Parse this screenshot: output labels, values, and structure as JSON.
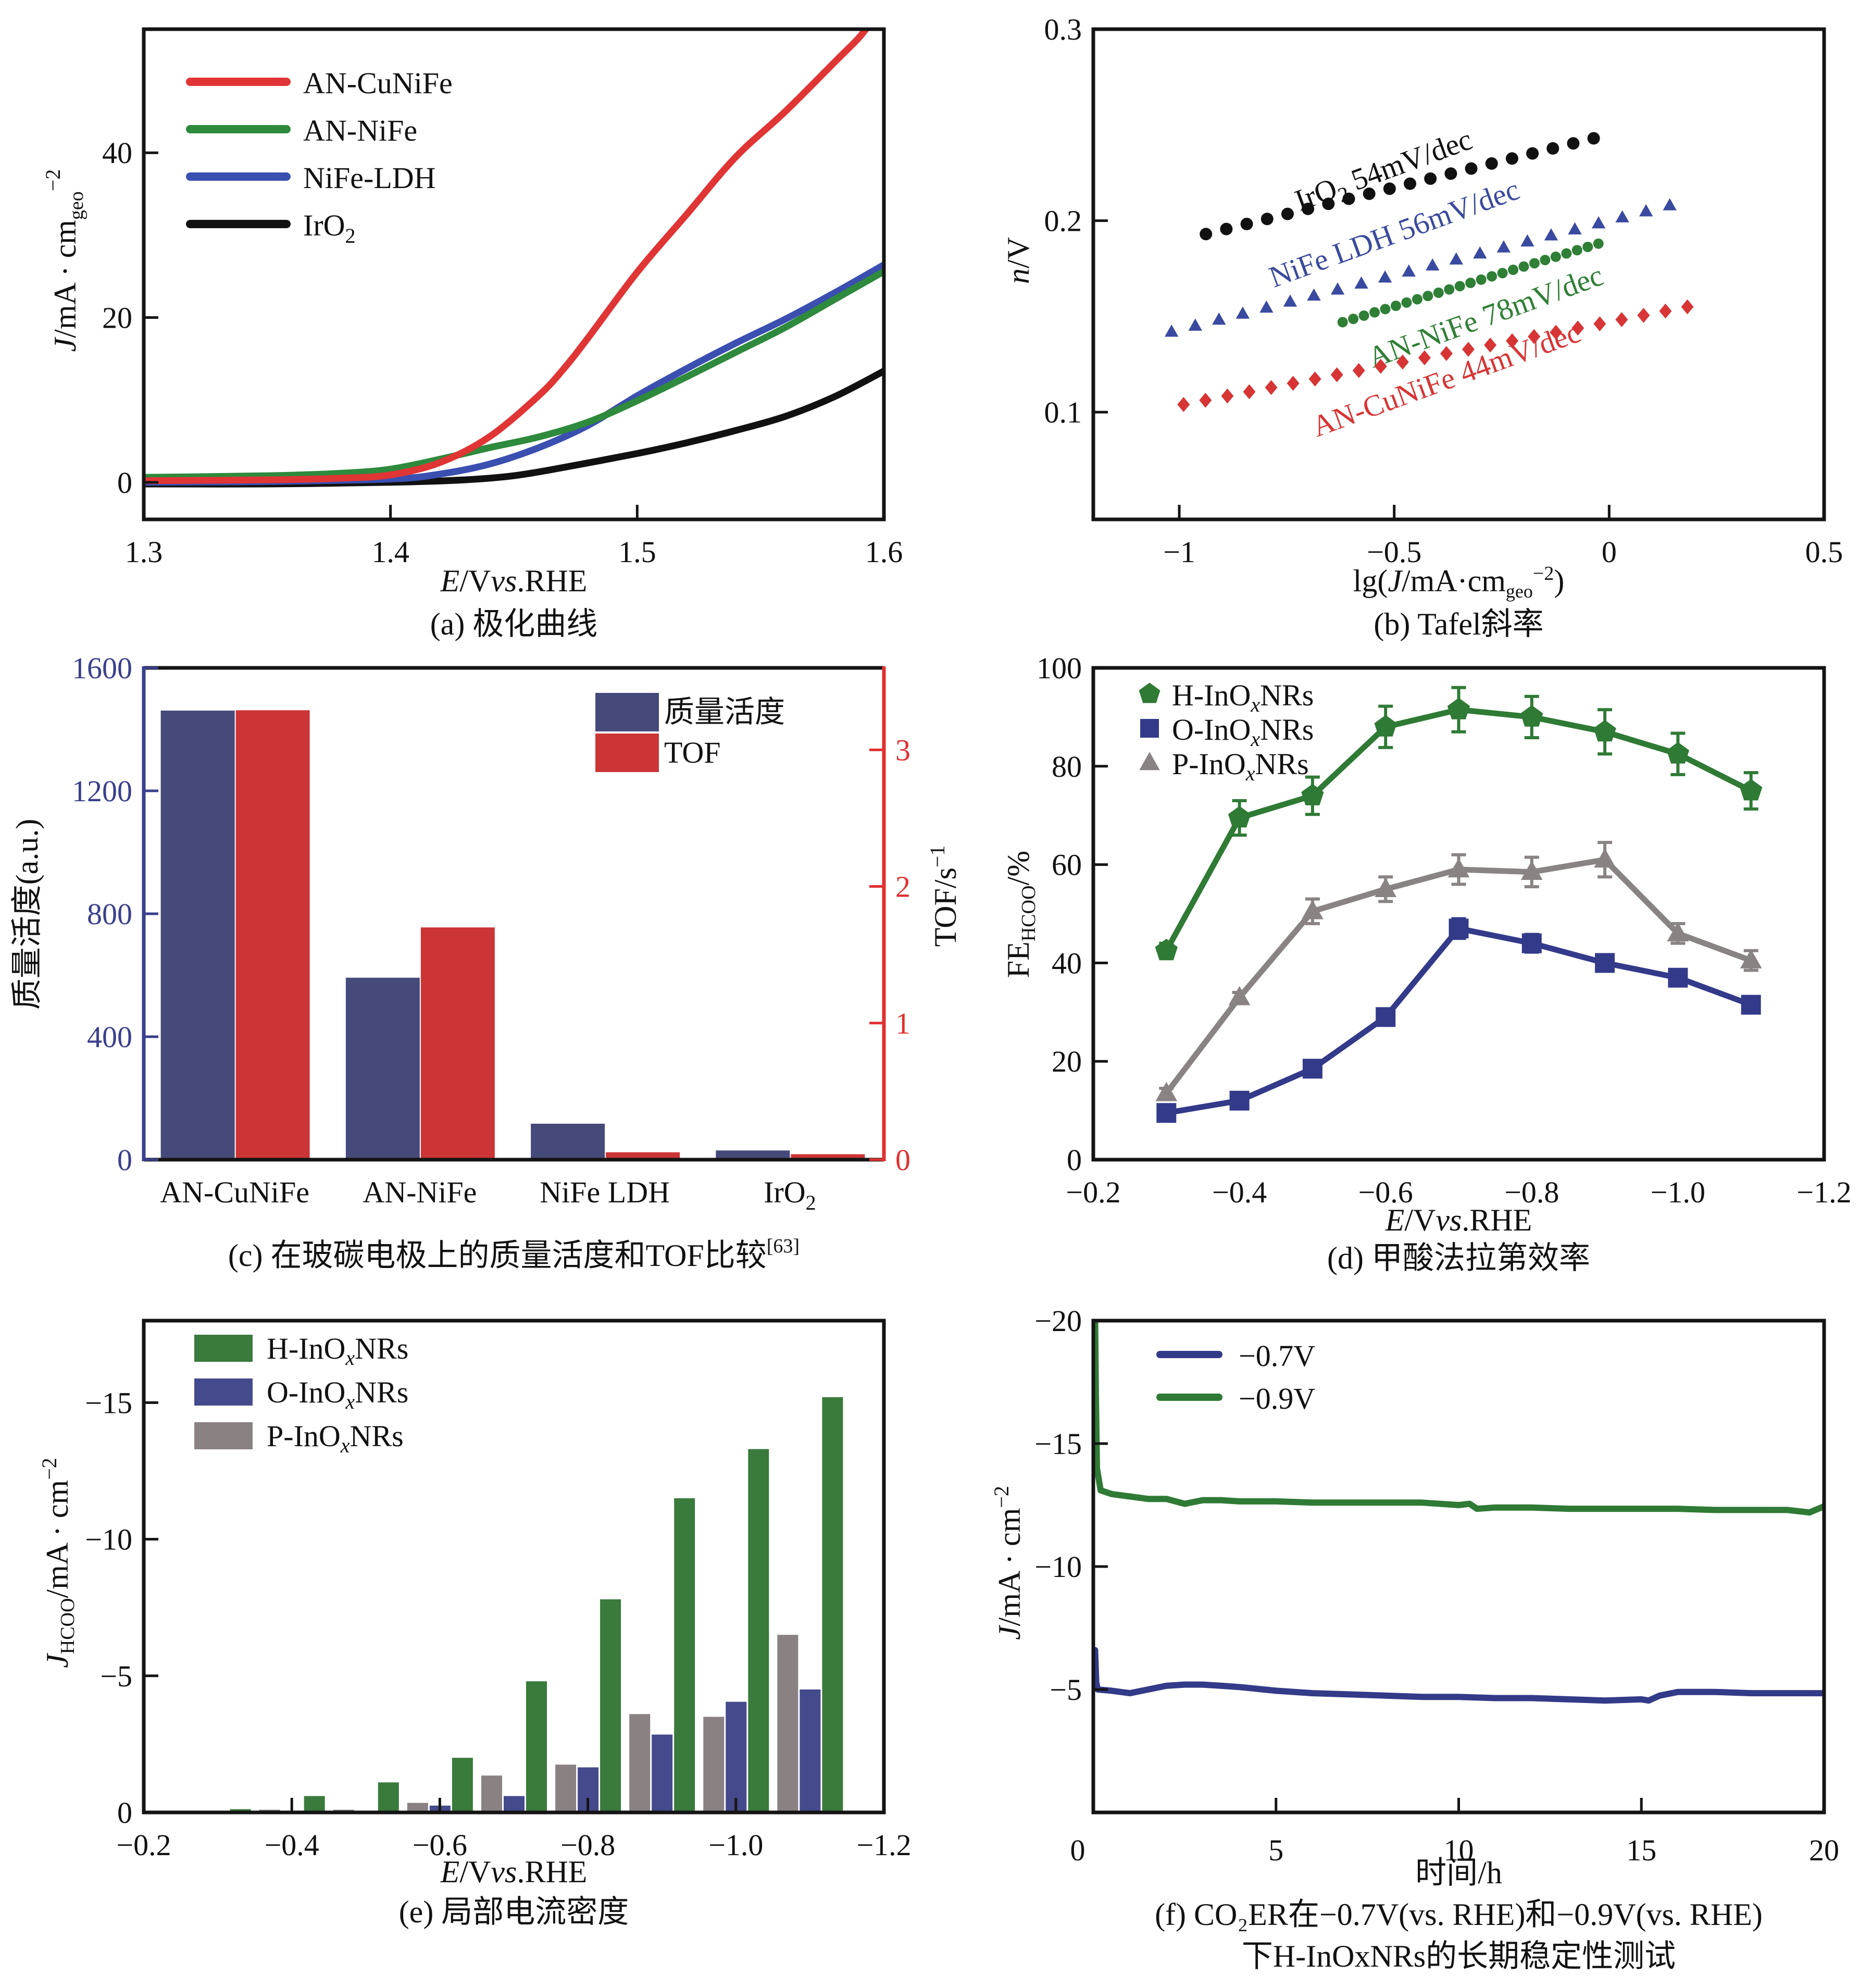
{
  "figure": {
    "panels_order": [
      "a",
      "b",
      "c",
      "d",
      "e",
      "f"
    ]
  },
  "chart_data": [
    {
      "id": "a",
      "type": "line",
      "caption": "(a) 极化曲线",
      "xlabel": "E/V vs.RHE",
      "xlabel_parts": {
        "italic": "E",
        "rest1": "/V",
        "italic2": "vs",
        "rest2": ".RHE"
      },
      "ylabel": "J/mA · cm_geo^-2",
      "ylabel_parts": {
        "italic": "J",
        "main": "/mA · cm",
        "sub": "geo",
        "sup": "−2"
      },
      "xlim": [
        1.3,
        1.6
      ],
      "ylim": [
        -4.5,
        55
      ],
      "xticks": [
        1.3,
        1.4,
        1.5,
        1.6
      ],
      "xtick_labels": [
        "1.3",
        "1.4",
        "1.5",
        "1.6"
      ],
      "yticks": [
        0,
        20,
        40
      ],
      "ytick_labels": [
        "0",
        "20",
        "40"
      ],
      "legend": "top-left",
      "series": [
        {
          "name": "AN-CuNiFe",
          "color": "#e03535",
          "x": [
            1.3,
            1.35,
            1.38,
            1.4,
            1.42,
            1.44,
            1.46,
            1.47,
            1.48,
            1.5,
            1.52,
            1.54,
            1.56,
            1.58,
            1.59,
            1.595
          ],
          "y": [
            0.2,
            0.3,
            0.5,
            0.9,
            2.4,
            5.5,
            10.5,
            13.7,
            17.5,
            25.5,
            32.5,
            39.5,
            45.0,
            51.0,
            54.0,
            56.0
          ]
        },
        {
          "name": "AN-NiFe",
          "color": "#2e8a3c",
          "x": [
            1.3,
            1.35,
            1.38,
            1.4,
            1.42,
            1.44,
            1.46,
            1.48,
            1.5,
            1.52,
            1.54,
            1.56,
            1.58,
            1.6
          ],
          "y": [
            0.6,
            0.8,
            1.1,
            1.6,
            2.8,
            4.2,
            5.5,
            7.3,
            9.9,
            12.8,
            15.8,
            18.8,
            22.2,
            25.6
          ]
        },
        {
          "name": "NiFe-LDH",
          "color": "#3a4fb0",
          "x": [
            1.3,
            1.35,
            1.4,
            1.42,
            1.44,
            1.46,
            1.48,
            1.5,
            1.52,
            1.54,
            1.56,
            1.58,
            1.6
          ],
          "y": [
            0.0,
            0.1,
            0.4,
            1.0,
            2.2,
            4.2,
            6.9,
            10.5,
            13.8,
            16.9,
            19.8,
            23.0,
            26.4
          ]
        },
        {
          "name": "IrO₂",
          "color": "#111111",
          "x": [
            1.3,
            1.35,
            1.4,
            1.43,
            1.45,
            1.47,
            1.5,
            1.52,
            1.54,
            1.56,
            1.58,
            1.6
          ],
          "y": [
            -0.2,
            -0.2,
            0.0,
            0.3,
            0.8,
            1.8,
            3.5,
            4.8,
            6.3,
            8.0,
            10.4,
            13.5
          ]
        }
      ]
    },
    {
      "id": "b",
      "type": "scatter",
      "caption": "(b) Tafel斜率",
      "xlabel": "lg(J/mA·cm_geo^-2)",
      "xlabel_parts": {
        "pre": "lg(",
        "italic": "J",
        "main": "/mA·cm",
        "sub": "geo",
        "sup": "−2",
        "post": ")"
      },
      "ylabel": "n/V",
      "ylabel_parts": {
        "italic": "n",
        "rest": "/V"
      },
      "xlim": [
        -1.2,
        0.5
      ],
      "ylim": [
        0.044,
        0.3
      ],
      "xticks": [
        -1,
        -0.5,
        0,
        0.5
      ],
      "xtick_labels": [
        "−1",
        "−0.5",
        "0",
        "0.5"
      ],
      "yticks": [
        0.1,
        0.2,
        0.3
      ],
      "ytick_labels": [
        "0.1",
        "0.2",
        "0.3"
      ],
      "series": [
        {
          "name": "IrO2",
          "label": "IrO₂ 54mV/dec",
          "marker": "circle",
          "color": "#111111",
          "x_start": -0.938,
          "x_end": -0.036,
          "y_start": 0.193,
          "y_end": 0.243,
          "n": 20,
          "label_at": [
            -0.72,
            0.205
          ],
          "label_angle": -20
        },
        {
          "name": "NiFe LDH",
          "label": "NiFe LDH 56mV/dec",
          "marker": "triangle",
          "color": "#3a4aa0",
          "x_start": -1.018,
          "x_end": 0.141,
          "y_start": 0.142,
          "y_end": 0.208,
          "n": 22,
          "label_at": [
            -0.78,
            0.165
          ],
          "label_angle": -20
        },
        {
          "name": "AN-NiFe",
          "label": "AN-NiFe 78mV/dec",
          "marker": "circle",
          "color": "#2f7f36",
          "x_start": -0.62,
          "x_end": -0.025,
          "y_start": 0.147,
          "y_end": 0.188,
          "n": 25,
          "label_at": [
            -0.55,
            0.123
          ],
          "label_angle": -20
        },
        {
          "name": "AN-CuNiFe",
          "label": "AN-CuNiFe 44mV/dec",
          "marker": "diamond",
          "color": "#d73535",
          "x_start": -0.99,
          "x_end": 0.182,
          "y_start": 0.104,
          "y_end": 0.155,
          "n": 24,
          "label_at": [
            -0.68,
            0.087
          ],
          "label_angle": -20
        }
      ]
    },
    {
      "id": "c",
      "type": "bar",
      "caption": "(c) 在玻碳电极上的质量活度和TOF比较",
      "caption_ref": "[63]",
      "categories": [
        "AN-CuNiFe",
        "AN-NiFe",
        "NiFe LDH",
        "IrO₂"
      ],
      "ylabel": "质量活度(a.u.)",
      "ylabel_right": "TOF/s⁻¹",
      "ylabel_right_parts": {
        "main": "TOF/s",
        "sup": "−1"
      },
      "ylim": [
        0,
        1600
      ],
      "ylim_right": [
        0,
        3.6
      ],
      "yticks": [
        0,
        400,
        800,
        1200,
        1600
      ],
      "ytick_labels": [
        "0",
        "400",
        "800",
        "1200",
        "1600"
      ],
      "yticks_right": [
        0,
        1,
        2,
        3
      ],
      "ytick_labels_right": [
        "0",
        "1",
        "2",
        "3"
      ],
      "left_axis_color": "#3b3f8c",
      "right_axis_color": "#e03030",
      "legend": "top-right",
      "series": [
        {
          "name": "质量活度",
          "axis": "left",
          "color": "#464a7a",
          "values": [
            1461,
            592,
            117,
            30
          ]
        },
        {
          "name": "TOF",
          "axis": "right",
          "color": "#cc3535",
          "values": [
            3.29,
            1.7,
            0.054,
            0.04
          ]
        }
      ]
    },
    {
      "id": "d",
      "type": "line",
      "caption": "(d) 甲酸法拉第效率",
      "xlabel": "E/V vs.RHE",
      "xlabel_parts": {
        "italic": "E",
        "rest1": "/V",
        "italic2": "vs",
        "rest2": ".RHE"
      },
      "ylabel": "FE_HCOO/%",
      "ylabel_parts": {
        "main": "FE",
        "sub": "HCOO",
        "rest": "/%"
      },
      "xlim": [
        -0.2,
        -1.2
      ],
      "ylim": [
        0,
        100
      ],
      "xticks": [
        -0.2,
        -0.4,
        -0.6,
        -0.8,
        -1.0,
        -1.2
      ],
      "xtick_labels": [
        "−0.2",
        "−0.4",
        "−0.6",
        "−0.8",
        "−1.0",
        "−1.2"
      ],
      "yticks": [
        0,
        20,
        40,
        60,
        80,
        100
      ],
      "ytick_labels": [
        "0",
        "20",
        "40",
        "60",
        "80",
        "100"
      ],
      "legend": "top-left",
      "x": [
        -0.3,
        -0.4,
        -0.5,
        -0.6,
        -0.7,
        -0.8,
        -0.9,
        -1.0,
        -1.1
      ],
      "series": [
        {
          "name": "H-InOxNRs",
          "label_main": "H-InO",
          "label_sub": "x",
          "label_end": "NRs",
          "marker": "pentagon",
          "color": "#2f7a35",
          "values": [
            42.5,
            69.5,
            74,
            88,
            91.5,
            90,
            87,
            82.5,
            75
          ],
          "errors": [
            1.5,
            3.5,
            3.8,
            4.2,
            4.5,
            4.2,
            4.5,
            4.2,
            3.7
          ]
        },
        {
          "name": "O-InOxNRs",
          "label_main": "O-InO",
          "label_sub": "x",
          "label_end": "NRs",
          "marker": "square",
          "color": "#333a8a",
          "values": [
            9.5,
            12,
            18.5,
            29,
            47,
            44,
            40,
            37,
            31.5
          ],
          "errors": [
            1.0,
            1.0,
            1.0,
            1.2,
            2.0,
            1.8,
            1.5,
            1.5,
            1.2
          ]
        },
        {
          "name": "P-InOxNRs",
          "label_main": "P-InO",
          "label_sub": "x",
          "label_end": "NRs",
          "marker": "triangle",
          "color": "#8a8383",
          "values": [
            13.5,
            33,
            50.5,
            55,
            59,
            58.5,
            61,
            46,
            40.5
          ],
          "errors": [
            1.0,
            1.0,
            2.5,
            2.5,
            3.0,
            3.0,
            3.5,
            2.0,
            2.0
          ]
        }
      ]
    },
    {
      "id": "e",
      "type": "bar",
      "caption": "(e) 局部电流密度",
      "xlabel": "E/V vs.RHE",
      "xlabel_parts": {
        "italic": "E",
        "rest1": "/V",
        "italic2": "vs",
        "rest2": ".RHE"
      },
      "ylabel": "J_HCOO/mA · cm^-2",
      "ylabel_parts": {
        "italic": "J",
        "sub": "HCOO",
        "main": "/mA · cm",
        "sup": "−2"
      },
      "xlim": [
        -0.2,
        -1.2
      ],
      "ylim": [
        0,
        -18
      ],
      "xticks": [
        -0.2,
        -0.4,
        -0.6,
        -0.8,
        -1.0,
        -1.2
      ],
      "xtick_labels": [
        "−0.2",
        "−0.4",
        "−0.6",
        "−0.8",
        "−1.0",
        "−1.2"
      ],
      "yticks": [
        0,
        -5,
        -10,
        -15
      ],
      "ytick_labels": [
        "0",
        "−5",
        "−10",
        "−15"
      ],
      "legend": "top-left",
      "x": [
        -0.3,
        -0.4,
        -0.5,
        -0.6,
        -0.7,
        -0.8,
        -0.9,
        -1.0,
        -1.1
      ],
      "series": [
        {
          "name": "P-InOxNRs",
          "label_main": "P-InO",
          "label_sub": "x",
          "label_end": "NRs",
          "color": "#8a8282",
          "values": [
            -0.05,
            -0.1,
            -0.1,
            -0.35,
            -1.35,
            -1.75,
            -3.6,
            -3.5,
            -6.5
          ]
        },
        {
          "name": "O-InOxNRs",
          "label_main": "O-InO",
          "label_sub": "x",
          "label_end": "NRs",
          "color": "#454a8c",
          "values": [
            -0.03,
            -0.05,
            -0.05,
            -0.25,
            -0.6,
            -1.65,
            -2.85,
            -4.05,
            -4.5
          ]
        },
        {
          "name": "H-InOxNRs",
          "label_main": "H-InO",
          "label_sub": "x",
          "label_end": "NRs",
          "color": "#3a7a3c",
          "values": [
            -0.12,
            -0.6,
            -1.1,
            -2.0,
            -4.8,
            -7.8,
            -11.5,
            -13.3,
            -15.2
          ]
        }
      ],
      "legend_order": [
        "H-InOxNRs",
        "O-InOxNRs",
        "P-InOxNRs"
      ]
    },
    {
      "id": "f",
      "type": "line",
      "caption_line1": "(f) CO₂ER在−0.7V(vs. RHE)和−0.9V(vs. RHE)",
      "caption_line2": "下H-InOxNRs的长期稳定性测试",
      "xlabel": "时间/h",
      "ylabel": "J/mA · cm^-2",
      "ylabel_parts": {
        "italic": "J",
        "main": "/mA · cm",
        "sup": "−2"
      },
      "xlim": [
        0,
        20
      ],
      "ylim": [
        0,
        -20
      ],
      "xticks": [
        0,
        5,
        10,
        15,
        20
      ],
      "xtick_labels": [
        "0",
        "5",
        "10",
        "15",
        "20"
      ],
      "yticks": [
        -5,
        -10,
        -15,
        -20
      ],
      "ytick_labels": [
        "−5",
        "−10",
        "−15",
        "−20"
      ],
      "legend": "top-left",
      "series": [
        {
          "name": "−0.7V",
          "color": "#333a88",
          "x": [
            0.05,
            0.08,
            0.12,
            0.5,
            1.0,
            1.5,
            2.0,
            2.5,
            3.0,
            3.5,
            4.0,
            5.0,
            6.0,
            7.0,
            8.0,
            9.0,
            10.0,
            11.0,
            12.0,
            13.0,
            14.0,
            15.0,
            15.2,
            15.5,
            16.0,
            17.0,
            18.0,
            19.0,
            20.0
          ],
          "y": [
            -6.6,
            -5.3,
            -5.0,
            -4.95,
            -4.85,
            -5.0,
            -5.15,
            -5.2,
            -5.2,
            -5.15,
            -5.1,
            -4.95,
            -4.85,
            -4.8,
            -4.75,
            -4.7,
            -4.7,
            -4.65,
            -4.65,
            -4.6,
            -4.55,
            -4.6,
            -4.55,
            -4.75,
            -4.9,
            -4.9,
            -4.85,
            -4.85,
            -4.85
          ]
        },
        {
          "name": "−0.9V",
          "color": "#2f7a35",
          "x": [
            0.05,
            0.07,
            0.1,
            0.2,
            0.5,
            1.0,
            1.5,
            2.0,
            2.5,
            3.0,
            3.5,
            4.0,
            5.0,
            6.0,
            7.0,
            8.0,
            9.0,
            10.0,
            10.3,
            10.5,
            11.0,
            12.0,
            13.0,
            14.0,
            15.0,
            16.0,
            17.0,
            18.0,
            19.0,
            19.6,
            20.0
          ],
          "y": [
            -20.0,
            -17.0,
            -14.0,
            -13.1,
            -12.95,
            -12.85,
            -12.75,
            -12.75,
            -12.55,
            -12.7,
            -12.7,
            -12.65,
            -12.65,
            -12.6,
            -12.6,
            -12.6,
            -12.6,
            -12.5,
            -12.55,
            -12.35,
            -12.4,
            -12.4,
            -12.35,
            -12.35,
            -12.35,
            -12.35,
            -12.3,
            -12.3,
            -12.3,
            -12.2,
            -12.45
          ]
        }
      ]
    }
  ]
}
